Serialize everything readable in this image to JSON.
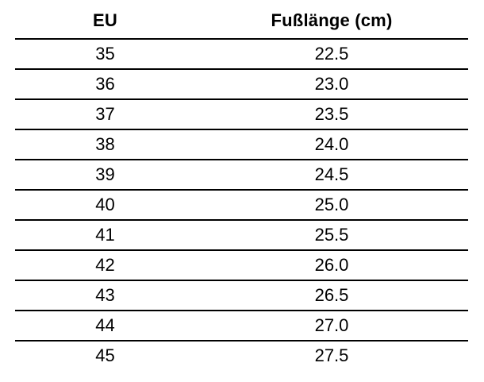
{
  "colors": {
    "background": "#ffffff",
    "text": "#000000",
    "rule": "#000000"
  },
  "table": {
    "columns": [
      {
        "label": "EU"
      },
      {
        "label": "Fußlänge (cm)"
      }
    ],
    "rows": [
      {
        "eu": "35",
        "cm": "22.5"
      },
      {
        "eu": "36",
        "cm": "23.0"
      },
      {
        "eu": "37",
        "cm": "23.5"
      },
      {
        "eu": "38",
        "cm": "24.0"
      },
      {
        "eu": "39",
        "cm": "24.5"
      },
      {
        "eu": "40",
        "cm": "25.0"
      },
      {
        "eu": "41",
        "cm": "25.5"
      },
      {
        "eu": "42",
        "cm": "26.0"
      },
      {
        "eu": "43",
        "cm": "26.5"
      },
      {
        "eu": "44",
        "cm": "27.0"
      },
      {
        "eu": "45",
        "cm": "27.5"
      }
    ]
  }
}
